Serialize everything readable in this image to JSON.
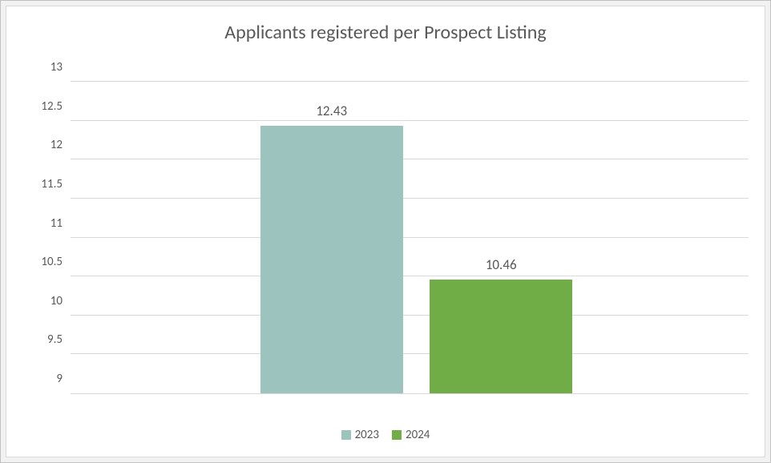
{
  "chart": {
    "type": "bar",
    "title": "Applicants registered per Prospect Listing",
    "title_fontsize": 24,
    "title_color": "#595959",
    "background_color": "#ffffff",
    "outer_background_color": "#f2f2f2",
    "border_color": "#d9d9d9",
    "grid_color": "#d9d9d9",
    "label_color": "#595959",
    "label_fontsize": 15,
    "data_label_fontsize": 17,
    "ylim": [
      9,
      13
    ],
    "ytick_step": 0.5,
    "yticks": [
      9,
      9.5,
      10,
      10.5,
      11,
      11.5,
      12,
      12.5,
      13
    ],
    "ytick_labels": [
      "9",
      "9.5",
      "10",
      "10.5",
      "11",
      "11.5",
      "12",
      "12.5",
      "13"
    ],
    "series": [
      {
        "name": "2023",
        "value": 12.43,
        "color": "#9dc3bf"
      },
      {
        "name": "2024",
        "value": 10.46,
        "color": "#70ad47"
      }
    ],
    "legend_position": "bottom"
  }
}
